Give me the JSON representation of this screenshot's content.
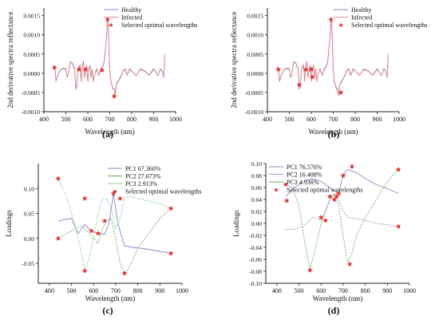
{
  "chart_data": [
    {
      "id": "a",
      "type": "line",
      "caption": "(a)",
      "xlabel": "Wavelength (nm)",
      "ylabel": "2nd derivative spectra reflectance",
      "xlim": [
        400,
        1000
      ],
      "ylim": [
        -0.001,
        0.0017
      ],
      "xticks": [
        "400",
        "500",
        "600",
        "700",
        "800",
        "900",
        "1000"
      ],
      "yticks": [
        "-0.0010",
        "-0.0005",
        "0.0000",
        "0.0005",
        "0.0010",
        "0.0015"
      ],
      "series": [
        {
          "name": "Healthy",
          "color": "#8888cc",
          "x": [
            445,
            450,
            455,
            460,
            470,
            480,
            490,
            500,
            505,
            510,
            520,
            530,
            540,
            545,
            550,
            555,
            560,
            565,
            570,
            575,
            580,
            585,
            590,
            595,
            600,
            605,
            610,
            615,
            620,
            625,
            630,
            640,
            650,
            660,
            670,
            675,
            680,
            685,
            688,
            690,
            693,
            695,
            700,
            705,
            710,
            715,
            720,
            725,
            730,
            740,
            750,
            760,
            770,
            780,
            790,
            800,
            820,
            840,
            860,
            880,
            900,
            920,
            930,
            940,
            945,
            948,
            950
          ],
          "y": [
            0.00015,
            0.0001,
            -0.0002,
            -0.0001,
            5e-05,
            0.0001,
            0.00012,
            0.0001,
            -0.0001,
            -5e-05,
            0.0003,
            0.00025,
            0.0001,
            -0.0004,
            -0.0003,
            0.0001,
            0.00015,
            0.0002,
            -0.0002,
            0.0002,
            0.0003,
            -0.0001,
            5e-05,
            0.0002,
            -0.0002,
            0.0001,
            0.0002,
            -0.0001,
            0.0001,
            -0.0002,
            -5e-05,
            0.0001,
            -5e-05,
            0.0001,
            0.0002,
            0.0003,
            0.0006,
            0.0009,
            0.0012,
            0.00135,
            0.0013,
            0.001,
            0.0001,
            -0.0002,
            -0.0003,
            -0.0004,
            -0.0004,
            -0.00055,
            -0.0003,
            -0.0002,
            -0.0001,
            5e-05,
            0.0001,
            -5e-05,
            0.0001,
            5e-05,
            -5e-05,
            0.0001,
            5e-05,
            -5e-05,
            0.0001,
            -5e-05,
            0.0001,
            5e-05,
            -0.0001,
            0.0001,
            0.00045
          ]
        },
        {
          "name": "Infected",
          "color": "#e08888",
          "x": [
            445,
            450,
            455,
            460,
            470,
            480,
            490,
            500,
            505,
            510,
            520,
            530,
            540,
            545,
            550,
            555,
            560,
            565,
            570,
            575,
            580,
            585,
            590,
            595,
            600,
            605,
            610,
            615,
            620,
            625,
            630,
            640,
            650,
            660,
            670,
            675,
            680,
            685,
            688,
            690,
            693,
            695,
            700,
            705,
            710,
            715,
            720,
            725,
            730,
            740,
            750,
            760,
            770,
            780,
            790,
            800,
            820,
            840,
            860,
            880,
            900,
            920,
            930,
            940,
            945,
            948,
            950
          ],
          "y": [
            0.00018,
            0.00012,
            -0.00022,
            -0.00012,
            4e-05,
            0.00011,
            0.00014,
            0.00012,
            -0.00012,
            -4e-05,
            0.00028,
            0.00027,
            0.00012,
            -0.00042,
            -0.00032,
            0.00012,
            0.00017,
            0.00022,
            -0.00022,
            0.00018,
            0.00032,
            -0.00012,
            6e-05,
            0.00022,
            -0.00022,
            0.00012,
            0.00022,
            -0.00012,
            0.00012,
            -0.00022,
            -4e-05,
            0.00012,
            -4e-05,
            0.00012,
            0.00022,
            0.00032,
            0.00062,
            0.00092,
            0.00125,
            0.0014,
            0.00132,
            0.00098,
            0.00012,
            -0.00022,
            -0.00032,
            -0.00042,
            -0.00042,
            -0.0006,
            -0.00028,
            -0.00018,
            -8e-05,
            6e-05,
            0.00012,
            -4e-05,
            0.00012,
            6e-05,
            -6e-05,
            0.00012,
            6e-05,
            -4e-05,
            0.00012,
            -6e-05,
            0.00012,
            6e-05,
            -0.00012,
            0.00012,
            0.0005
          ]
        },
        {
          "name": "Selected optimal wavelengths",
          "color": "#e03030",
          "marker": "star",
          "x": [
            448,
            560,
            590,
            665,
            690,
            720
          ],
          "y": [
            0.00015,
            0.0001,
            0.0001,
            8e-05,
            0.0014,
            -0.0006
          ]
        }
      ]
    },
    {
      "id": "b",
      "type": "line",
      "caption": "(b)",
      "xlabel": "Wavelength (nm)",
      "ylabel": "2nd derivative spectra reflectance",
      "xlim": [
        400,
        1000
      ],
      "ylim": [
        -0.001,
        0.0017
      ],
      "xticks": [
        "400",
        "500",
        "600",
        "700",
        "800",
        "900",
        "1000"
      ],
      "yticks": [
        "-0.0010",
        "-0.0005",
        "0.0000",
        "0.0005",
        "0.0010",
        "0.0015"
      ],
      "series": [
        {
          "name": "Healthy",
          "color": "#8888cc",
          "x": [
            445,
            450,
            455,
            460,
            470,
            480,
            490,
            500,
            505,
            510,
            520,
            530,
            540,
            545,
            550,
            555,
            560,
            565,
            570,
            575,
            580,
            585,
            590,
            595,
            600,
            605,
            610,
            615,
            620,
            625,
            630,
            640,
            650,
            660,
            670,
            675,
            680,
            685,
            688,
            690,
            693,
            695,
            700,
            705,
            710,
            715,
            720,
            725,
            730,
            740,
            750,
            760,
            770,
            780,
            790,
            800,
            820,
            840,
            860,
            880,
            900,
            920,
            930,
            940,
            945,
            948,
            950
          ],
          "y": [
            0.00015,
            0.0001,
            -0.0002,
            -0.0001,
            5e-05,
            0.0001,
            0.00012,
            0.0001,
            -0.0001,
            -5e-05,
            0.0003,
            0.00025,
            0.0001,
            -0.0004,
            -0.0003,
            0.0001,
            0.00015,
            0.0002,
            -0.0002,
            0.0002,
            0.0003,
            -0.0001,
            5e-05,
            0.0002,
            -0.0002,
            0.0001,
            0.0002,
            -0.0001,
            0.0001,
            -0.0002,
            -5e-05,
            0.0001,
            -5e-05,
            0.0001,
            0.0002,
            0.0003,
            0.0006,
            0.0009,
            0.0012,
            0.00135,
            0.0013,
            0.001,
            0.0001,
            -0.0002,
            -0.0003,
            -0.0004,
            -0.0004,
            -0.00055,
            -0.0003,
            -0.0002,
            -0.0001,
            5e-05,
            0.0001,
            -5e-05,
            0.0001,
            5e-05,
            -5e-05,
            0.0001,
            5e-05,
            -5e-05,
            0.0001,
            -5e-05,
            0.0001,
            5e-05,
            -0.0001,
            0.0001,
            0.00045
          ]
        },
        {
          "name": "Infected",
          "color": "#e08888",
          "x": [
            445,
            450,
            455,
            460,
            470,
            480,
            490,
            500,
            505,
            510,
            520,
            530,
            540,
            545,
            550,
            555,
            560,
            565,
            570,
            575,
            580,
            585,
            590,
            595,
            600,
            605,
            610,
            615,
            620,
            625,
            630,
            640,
            650,
            660,
            670,
            675,
            680,
            685,
            688,
            690,
            693,
            695,
            700,
            705,
            710,
            715,
            720,
            725,
            730,
            740,
            750,
            760,
            770,
            780,
            790,
            800,
            820,
            840,
            860,
            880,
            900,
            920,
            930,
            940,
            945,
            948,
            950
          ],
          "y": [
            0.00018,
            0.00012,
            -0.00022,
            -0.00012,
            4e-05,
            0.00011,
            0.00014,
            0.00012,
            -0.00012,
            -4e-05,
            0.00028,
            0.00027,
            0.00012,
            -0.00042,
            -0.00032,
            0.00012,
            0.00017,
            0.00022,
            -0.00022,
            0.00018,
            0.00032,
            -0.00012,
            6e-05,
            0.00022,
            -0.00022,
            0.00012,
            0.00022,
            -0.00012,
            0.00012,
            -0.00022,
            -4e-05,
            0.00012,
            -4e-05,
            0.00012,
            0.00022,
            0.00032,
            0.00062,
            0.00092,
            0.00125,
            0.0014,
            0.00132,
            0.00098,
            0.00012,
            -0.00022,
            -0.00032,
            -0.00042,
            -0.00042,
            -0.0006,
            -0.00028,
            -0.00018,
            -8e-05,
            6e-05,
            0.00012,
            -4e-05,
            0.00012,
            6e-05,
            -6e-05,
            0.00012,
            6e-05,
            -4e-05,
            0.00012,
            -6e-05,
            0.00012,
            6e-05,
            -0.00012,
            0.00012,
            0.0005
          ]
        },
        {
          "name": "Selected optimal wavelengths",
          "color": "#e03030",
          "marker": "star",
          "x": [
            450,
            545,
            575,
            600,
            605,
            690,
            735
          ],
          "y": [
            0.0001,
            -0.0003,
            0.0001,
            0.0001,
            -0.0001,
            0.0014,
            -0.0005
          ]
        }
      ]
    },
    {
      "id": "c",
      "type": "line",
      "caption": "(c)",
      "xlabel": "Wavelength (nm)",
      "ylabel": "Loadings",
      "xlim": [
        350,
        1000
      ],
      "ylim": [
        -0.09,
        0.15
      ],
      "xticks": [
        "400",
        "500",
        "600",
        "700",
        "800",
        "900",
        "1000"
      ],
      "yticks": [
        "-0.05",
        "0.00",
        "0.05",
        "0.10"
      ],
      "series": [
        {
          "name": "PC1 67.360%",
          "color": "#8888cc",
          "x": [
            440,
            470,
            500,
            530,
            560,
            590,
            620,
            650,
            670,
            690,
            710,
            740,
            780,
            820,
            860,
            900,
            950
          ],
          "y": [
            0.035,
            0.038,
            0.04,
            0.01,
            0.028,
            0.015,
            0.01,
            0.008,
            0.03,
            0.09,
            0.03,
            -0.015,
            -0.018,
            -0.02,
            -0.023,
            -0.026,
            -0.03
          ]
        },
        {
          "name": "PC2 27.673%",
          "color": "#66aa66",
          "x": [
            440,
            460,
            480,
            500,
            520,
            540,
            560,
            580,
            600,
            620,
            640,
            660,
            680,
            700,
            720,
            740,
            760,
            800,
            850,
            900,
            950
          ],
          "y": [
            0.0,
            0.005,
            0.01,
            0.015,
            0.02,
            0.025,
            0.02,
            0.01,
            0.0,
            -0.01,
            0.02,
            0.035,
            0.04,
            0.0,
            -0.05,
            -0.07,
            -0.06,
            -0.02,
            0.01,
            0.04,
            0.06
          ]
        },
        {
          "name": "PC3 2.913%",
          "color": "#88cc88",
          "x": [
            440,
            460,
            480,
            500,
            520,
            540,
            560,
            580,
            600,
            620,
            640,
            660,
            680,
            700,
            720,
            740,
            760,
            800,
            850,
            900,
            950
          ],
          "y": [
            0.12,
            0.1,
            0.08,
            0.05,
            0.02,
            -0.02,
            -0.065,
            -0.04,
            0.0,
            0.05,
            0.08,
            0.08,
            0.06,
            0.02,
            0.04,
            0.08,
            0.085,
            0.08,
            0.075,
            0.07,
            0.06
          ]
        },
        {
          "name": "Selected optimal wavelengths",
          "color": "#e03030",
          "marker": "star",
          "x": [
            440,
            440,
            560,
            560,
            590,
            620,
            650,
            690,
            720,
            740,
            950,
            950
          ],
          "y": [
            0.12,
            0.0,
            -0.065,
            0.08,
            0.015,
            0.01,
            0.035,
            0.09,
            0.08,
            -0.07,
            0.06,
            -0.03
          ]
        }
      ]
    },
    {
      "id": "d",
      "type": "line",
      "caption": "(d)",
      "xlabel": "Wavelength (nm)",
      "ylabel": "Loadings",
      "xlim": [
        350,
        1000
      ],
      "ylim": [
        -0.1,
        0.1
      ],
      "xticks": [
        "400",
        "500",
        "600",
        "700",
        "800",
        "900",
        "1000"
      ],
      "yticks": [
        "-0.10",
        "-0.08",
        "-0.06",
        "-0.04",
        "-0.02",
        "0.00",
        "0.02",
        "0.04",
        "0.06",
        "0.08",
        "0.10"
      ],
      "series": [
        {
          "name": "PC1 76.576%",
          "color": "#8888cc",
          "x": [
            440,
            480,
            520,
            560,
            600,
            640,
            680,
            700,
            720,
            760,
            800,
            850,
            900,
            950
          ],
          "y": [
            0.045,
            0.06,
            0.07,
            0.075,
            0.07,
            0.06,
            0.05,
            0.08,
            0.09,
            0.085,
            0.075,
            0.065,
            0.058,
            0.05
          ]
        },
        {
          "name": "PC2 16.408%",
          "color": "#9999cc",
          "x": [
            440,
            480,
            520,
            560,
            600,
            640,
            660,
            680,
            700,
            720,
            760,
            800,
            850,
            900,
            950
          ],
          "y": [
            -0.01,
            -0.01,
            -0.005,
            0.01,
            0.005,
            0.04,
            0.05,
            0.04,
            0.02,
            0.01,
            0.008,
            0.005,
            0.0,
            -0.002,
            -0.005
          ]
        },
        {
          "name": "PC3 4.938%",
          "color": "#66aa66",
          "x": [
            440,
            470,
            500,
            530,
            550,
            570,
            600,
            620,
            640,
            660,
            680,
            700,
            720,
            740,
            760,
            800,
            850,
            900,
            950
          ],
          "y": [
            0.065,
            0.06,
            0.03,
            -0.04,
            -0.075,
            -0.05,
            0.0,
            0.02,
            0.04,
            0.05,
            0.03,
            -0.02,
            -0.065,
            -0.05,
            -0.02,
            0.01,
            0.04,
            0.07,
            0.09
          ]
        },
        {
          "name": "Selected optimal wavelengths",
          "color": "#e03030",
          "marker": "star",
          "x": [
            440,
            445,
            550,
            600,
            620,
            640,
            660,
            670,
            680,
            700,
            730,
            740,
            950,
            950
          ],
          "y": [
            0.065,
            0.038,
            -0.078,
            0.01,
            0.005,
            0.045,
            0.04,
            0.045,
            0.05,
            0.08,
            -0.068,
            0.095,
            0.09,
            -0.005
          ]
        }
      ]
    }
  ]
}
